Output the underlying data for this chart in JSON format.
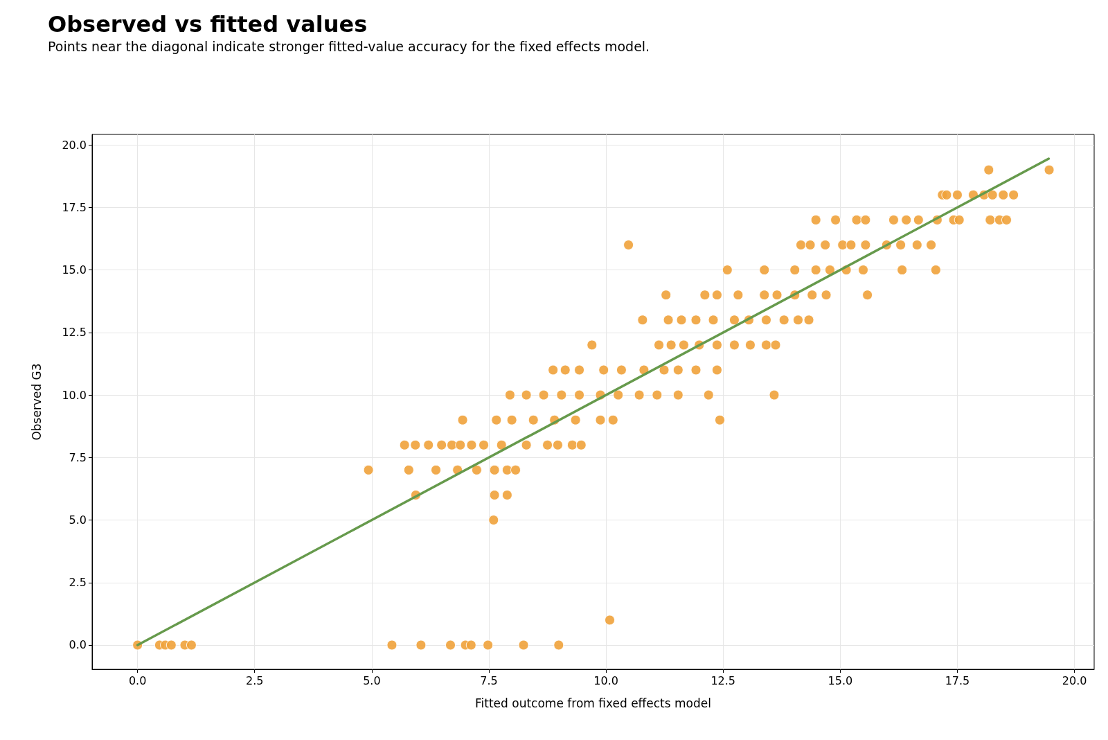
{
  "chart_data": {
    "type": "scatter",
    "title": "Observed vs fitted values",
    "subtitle": "Points near the diagonal indicate stronger fitted-value accuracy for the fixed effects model.",
    "xlabel": "Fitted outcome from fixed effects model",
    "ylabel": "Observed G3",
    "xlim": [
      -0.97,
      20.42
    ],
    "ylim": [
      -0.97,
      20.42
    ],
    "xticks": [
      {
        "value": 0,
        "label": "0.0"
      },
      2.5,
      {
        "value": 5,
        "label": "5.0"
      },
      7.5,
      {
        "value": 10,
        "label": "10.0"
      },
      12.5,
      {
        "value": 15,
        "label": "15.0"
      },
      17.5,
      {
        "value": 20,
        "label": "20.0"
      }
    ],
    "yticks": [
      {
        "value": 0,
        "label": "0.0"
      },
      2.5,
      {
        "value": 5,
        "label": "5.0"
      },
      7.5,
      {
        "value": 10,
        "label": "10.0"
      },
      12.5,
      {
        "value": 15,
        "label": "15.0"
      },
      17.5,
      {
        "value": 20,
        "label": "20.0"
      }
    ],
    "grid": true,
    "line_style": "solid",
    "series": [
      {
        "marker": "circle",
        "color": "#f0a23b",
        "x": [
          18.17,
          19.46,
          17.18,
          17.27,
          17.5,
          17.84,
          18.07,
          18.25,
          18.48,
          18.7,
          17.07,
          17.42,
          17.54,
          18.2,
          18.4,
          18.55,
          14.9,
          14.48,
          15.35,
          15.54,
          16.14,
          16.41,
          16.67,
          14.16,
          14.36,
          14.68,
          15.05,
          15.23,
          15.54,
          15.99,
          16.29,
          16.64,
          16.94,
          10.48,
          12.59,
          13.38,
          14.03,
          14.48,
          14.78,
          15.13,
          15.49,
          16.32,
          17.04,
          11.28,
          12.11,
          12.37,
          12.82,
          13.38,
          13.65,
          14.03,
          14.4,
          14.7,
          15.58,
          10.78,
          11.33,
          11.61,
          11.92,
          12.29,
          12.74,
          13.05,
          13.42,
          13.8,
          14.1,
          14.33,
          9.7,
          11.13,
          11.39,
          11.66,
          11.99,
          12.37,
          12.74,
          13.08,
          13.42,
          13.62,
          8.87,
          9.13,
          9.43,
          9.95,
          10.33,
          10.81,
          11.24,
          11.54,
          11.92,
          12.37,
          7.95,
          8.3,
          8.67,
          9.05,
          9.43,
          9.88,
          10.26,
          10.71,
          11.09,
          11.54,
          12.19,
          13.59,
          6.94,
          7.66,
          7.99,
          8.45,
          8.9,
          9.35,
          9.88,
          10.15,
          12.43,
          5.7,
          5.93,
          6.21,
          6.49,
          6.71,
          6.89,
          7.13,
          7.39,
          7.77,
          8.3,
          8.75,
          8.97,
          9.28,
          9.47,
          4.93,
          5.79,
          6.37,
          6.83,
          7.24,
          7.62,
          7.89,
          8.07,
          5.94,
          7.62,
          7.89,
          7.6,
          10.08,
          0,
          0.47,
          0.59,
          0.72,
          1.01,
          1.15,
          5.43,
          6.05,
          6.68,
          7.0,
          7.12,
          7.48,
          8.24,
          8.99
        ],
        "values": [
          19,
          19,
          18,
          18,
          18,
          18,
          18,
          18,
          18,
          18,
          17,
          17,
          17,
          17,
          17,
          17,
          17,
          17,
          17,
          17,
          17,
          17,
          17,
          16,
          16,
          16,
          16,
          16,
          16,
          16,
          16,
          16,
          16,
          16,
          15,
          15,
          15,
          15,
          15,
          15,
          15,
          15,
          15,
          14,
          14,
          14,
          14,
          14,
          14,
          14,
          14,
          14,
          14,
          13,
          13,
          13,
          13,
          13,
          13,
          13,
          13,
          13,
          13,
          13,
          12,
          12,
          12,
          12,
          12,
          12,
          12,
          12,
          12,
          12,
          11,
          11,
          11,
          11,
          11,
          11,
          11,
          11,
          11,
          11,
          10,
          10,
          10,
          10,
          10,
          10,
          10,
          10,
          10,
          10,
          10,
          10,
          9,
          9,
          9,
          9,
          9,
          9,
          9,
          9,
          9,
          8,
          8,
          8,
          8,
          8,
          8,
          8,
          8,
          8,
          8,
          8,
          8,
          8,
          8,
          7,
          7,
          7,
          7,
          7,
          7,
          7,
          7,
          6,
          6,
          6,
          5,
          1,
          0,
          0,
          0,
          0,
          0,
          0,
          0,
          0,
          0,
          0,
          0,
          0,
          0,
          0
        ]
      },
      {
        "type": "line",
        "color": "#669a4c",
        "x": [
          0,
          19.45
        ],
        "values": [
          0,
          19.45
        ]
      }
    ]
  }
}
